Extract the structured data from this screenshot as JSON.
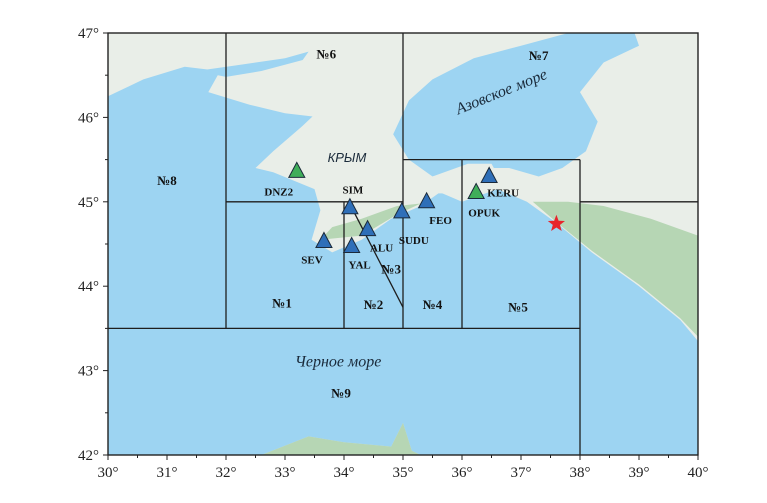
{
  "map": {
    "extent": {
      "lon": [
        30,
        40
      ],
      "lat": [
        42,
        47
      ]
    },
    "x_ticks": [
      "30°",
      "31°",
      "32°",
      "33°",
      "34°",
      "35°",
      "36°",
      "37°",
      "38°",
      "39°",
      "40°"
    ],
    "x_tick_values": [
      30,
      31,
      32,
      33,
      34,
      35,
      36,
      37,
      38,
      39,
      40
    ],
    "y_ticks": [
      "42°",
      "43°",
      "44°",
      "45°",
      "46°",
      "47°"
    ],
    "y_tick_values": [
      42,
      43,
      44,
      45,
      46,
      47
    ],
    "colors": {
      "sea": "#9dd4f2",
      "land": "#e9eee8",
      "relief": "#a9cfa6",
      "station_blue": "#2f6fb8",
      "station_green": "#3fae5a",
      "epicenter": "#e8242c",
      "boundary": "#1e1e1e"
    },
    "boundaries": [
      [
        [
          32,
          47
        ],
        [
          32,
          43.5
        ]
      ],
      [
        [
          35,
          47
        ],
        [
          35,
          43.5
        ]
      ],
      [
        [
          30,
          43.5
        ],
        [
          38,
          43.5
        ]
      ],
      [
        [
          32,
          45
        ],
        [
          35,
          45
        ]
      ],
      [
        [
          34,
          45
        ],
        [
          34,
          43.5
        ]
      ],
      [
        [
          34.08,
          45
        ],
        [
          35,
          43.75
        ]
      ],
      [
        [
          35,
          45.5
        ],
        [
          38,
          45.5
        ]
      ],
      [
        [
          36,
          45.5
        ],
        [
          36,
          43.5
        ]
      ],
      [
        [
          38,
          45.5
        ],
        [
          38,
          42
        ]
      ],
      [
        [
          38,
          45
        ],
        [
          40,
          45
        ]
      ]
    ],
    "regions": [
      {
        "label": "№1",
        "lon": 32.95,
        "lat": 43.75
      },
      {
        "label": "№2",
        "lon": 34.5,
        "lat": 43.73
      },
      {
        "label": "№3",
        "lon": 34.8,
        "lat": 44.15
      },
      {
        "label": "№4",
        "lon": 35.5,
        "lat": 43.73
      },
      {
        "label": "№5",
        "lon": 36.95,
        "lat": 43.7
      },
      {
        "label": "№6",
        "lon": 33.7,
        "lat": 46.7
      },
      {
        "label": "№7",
        "lon": 37.3,
        "lat": 46.68
      },
      {
        "label": "№8",
        "lon": 31.0,
        "lat": 45.2
      },
      {
        "label": "№9",
        "lon": 33.95,
        "lat": 42.68
      }
    ],
    "sea_labels": [
      {
        "label": "Азовское море",
        "lon": 36.7,
        "lat": 46.25,
        "rotate": -22
      },
      {
        "label": "Черное море",
        "lon": 33.9,
        "lat": 43.05,
        "rotate": 0
      }
    ],
    "land_labels": [
      {
        "label": "КРЫМ",
        "lon": 34.05,
        "lat": 45.47
      }
    ],
    "stations": [
      {
        "code": "DNZ2",
        "type": "green",
        "lon": 33.2,
        "lat": 45.36,
        "label_dx": -18,
        "label_dy": 24
      },
      {
        "code": "SIM",
        "type": "blue",
        "lon": 34.1,
        "lat": 44.93,
        "label_dx": 3,
        "label_dy": -14
      },
      {
        "code": "SEV",
        "type": "blue",
        "lon": 33.66,
        "lat": 44.53,
        "label_dx": -12,
        "label_dy": 22
      },
      {
        "code": "YAL",
        "type": "blue",
        "lon": 34.13,
        "lat": 44.47,
        "label_dx": 8,
        "label_dy": 22
      },
      {
        "code": "ALU",
        "type": "blue",
        "lon": 34.4,
        "lat": 44.67,
        "label_dx": 14,
        "label_dy": 22
      },
      {
        "code": "SUDU",
        "type": "blue",
        "lon": 34.98,
        "lat": 44.88,
        "label_dx": 12,
        "label_dy": 32
      },
      {
        "code": "FEO",
        "type": "blue",
        "lon": 35.4,
        "lat": 45.0,
        "label_dx": 14,
        "label_dy": 22
      },
      {
        "code": "KERU",
        "type": "blue",
        "lon": 36.46,
        "lat": 45.3,
        "label_dx": 14,
        "label_dy": 20
      },
      {
        "code": "OPUK",
        "type": "green",
        "lon": 36.24,
        "lat": 45.11,
        "label_dx": 8,
        "label_dy": 24
      }
    ],
    "epicenter": {
      "lon": 37.6,
      "lat": 44.74,
      "symbol": "star"
    }
  }
}
